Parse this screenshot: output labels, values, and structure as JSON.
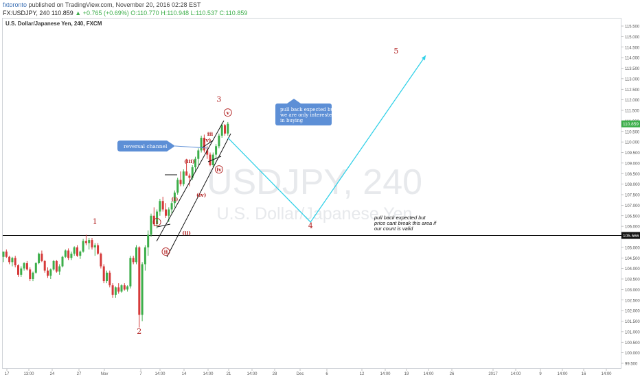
{
  "header": {
    "author": "fxtoronto",
    "published": "published on TradingView.com, November 20, 2016 02:28 EST",
    "symbol": "FX:USDJPY, 240",
    "close": "110.859",
    "arrow": "▲",
    "change": "+0.765 (+0.69%)",
    "open": "O:110.770",
    "high": "H:110.948",
    "low": "L:110.537",
    "closelabel": "C:110.859"
  },
  "chart_title": "U.S. Dollar/Japanese Yen, 240, FXCM",
  "watermark": {
    "symbol": "USDJPY, 240",
    "name": "U.S. Dollar/Japanese Yen"
  },
  "colors": {
    "up": "#3cae4a",
    "down": "#d63a3a",
    "wave": "#b22222",
    "projection": "#33d1e8",
    "callout": "#5d8fd6",
    "level": "#000000"
  },
  "price_axis": {
    "ticks": [
      "115.500",
      "115.000",
      "114.500",
      "114.000",
      "113.500",
      "113.000",
      "112.500",
      "112.000",
      "111.500",
      "111.000",
      "110.500",
      "110.000",
      "109.500",
      "109.000",
      "108.500",
      "108.000",
      "107.500",
      "107.000",
      "106.500",
      "106.000",
      "105.500",
      "105.000",
      "104.500",
      "104.000",
      "103.500",
      "103.000",
      "102.500",
      "102.000",
      "101.500",
      "101.000",
      "100.500",
      "100.000",
      "99.500"
    ],
    "current_price": "110.859",
    "level_price": "105.566"
  },
  "time_axis": {
    "ticks": [
      "17",
      "13:00",
      "24",
      "27",
      "Nov",
      "7",
      "14:00",
      "14",
      "14:00",
      "21",
      "14:00",
      "28",
      "Dec",
      "6",
      "12",
      "14:00",
      "19",
      "14:00",
      "26",
      "2017",
      "14:00",
      "9",
      "14:00",
      "16",
      "14:00"
    ]
  },
  "chart_data": {
    "type": "candlestick",
    "symbol": "USDJPY",
    "interval": "240",
    "ylim": [
      99.5,
      115.9
    ],
    "support_level": 105.566,
    "last_price": 110.859,
    "candles": [
      [
        104.55,
        104.8,
        104.3,
        104.8
      ],
      [
        104.8,
        104.9,
        104.5,
        104.55
      ],
      [
        104.55,
        104.6,
        104.2,
        104.3
      ],
      [
        104.3,
        104.55,
        104.1,
        104.5
      ],
      [
        104.5,
        104.6,
        104.05,
        104.15
      ],
      [
        104.15,
        104.2,
        103.6,
        103.7
      ],
      [
        103.7,
        104.1,
        103.6,
        104.0
      ],
      [
        104.0,
        104.3,
        103.9,
        104.25
      ],
      [
        104.25,
        104.35,
        103.9,
        103.95
      ],
      [
        103.95,
        104.05,
        103.4,
        103.5
      ],
      [
        103.5,
        103.85,
        103.4,
        103.8
      ],
      [
        103.8,
        104.3,
        103.75,
        104.25
      ],
      [
        104.25,
        104.75,
        104.2,
        104.7
      ],
      [
        104.7,
        104.85,
        104.3,
        104.35
      ],
      [
        104.35,
        104.4,
        103.8,
        103.9
      ],
      [
        103.9,
        104.05,
        103.55,
        103.65
      ],
      [
        103.65,
        104.0,
        103.5,
        103.95
      ],
      [
        103.95,
        104.4,
        103.9,
        104.35
      ],
      [
        104.35,
        104.4,
        103.8,
        103.85
      ],
      [
        103.85,
        104.2,
        103.7,
        104.1
      ],
      [
        104.1,
        104.6,
        104.05,
        104.55
      ],
      [
        104.55,
        104.9,
        104.5,
        104.85
      ],
      [
        104.85,
        104.95,
        104.4,
        104.5
      ],
      [
        104.5,
        104.8,
        104.4,
        104.7
      ],
      [
        104.7,
        105.05,
        104.6,
        105.0
      ],
      [
        105.0,
        105.1,
        104.55,
        104.6
      ],
      [
        104.6,
        104.85,
        104.45,
        104.8
      ],
      [
        104.8,
        105.4,
        104.75,
        105.3
      ],
      [
        105.3,
        105.6,
        105.1,
        105.2
      ],
      [
        105.2,
        105.45,
        104.9,
        105.35
      ],
      [
        105.35,
        105.45,
        104.9,
        105.0
      ],
      [
        105.0,
        105.2,
        104.6,
        105.1
      ],
      [
        105.1,
        105.2,
        104.65,
        104.7
      ],
      [
        104.7,
        104.75,
        104.0,
        104.1
      ],
      [
        104.1,
        104.2,
        103.3,
        103.4
      ],
      [
        103.4,
        103.9,
        103.3,
        103.8
      ],
      [
        103.8,
        103.9,
        103.1,
        103.2
      ],
      [
        103.2,
        103.3,
        102.6,
        102.75
      ],
      [
        102.75,
        103.15,
        102.6,
        103.1
      ],
      [
        103.1,
        103.3,
        102.8,
        102.9
      ],
      [
        102.9,
        103.25,
        102.85,
        103.2
      ],
      [
        103.2,
        103.3,
        102.95,
        103.0
      ],
      [
        103.0,
        103.2,
        102.9,
        103.15
      ],
      [
        103.15,
        104.6,
        103.05,
        104.5
      ],
      [
        104.5,
        104.6,
        104.2,
        104.3
      ],
      [
        104.3,
        105.1,
        104.2,
        105.0
      ],
      [
        105.0,
        105.05,
        101.2,
        101.8
      ],
      [
        101.8,
        104.3,
        101.5,
        104.2
      ],
      [
        104.2,
        105.1,
        103.9,
        105.0
      ],
      [
        105.0,
        105.8,
        104.6,
        105.6
      ],
      [
        105.6,
        106.6,
        105.5,
        106.5
      ],
      [
        106.5,
        106.9,
        106.0,
        106.1
      ],
      [
        106.1,
        106.8,
        105.9,
        106.7
      ],
      [
        106.7,
        107.3,
        106.5,
        107.2
      ],
      [
        107.2,
        107.4,
        106.7,
        106.8
      ],
      [
        106.8,
        107.1,
        106.4,
        106.5
      ],
      [
        106.5,
        106.9,
        106.2,
        106.8
      ],
      [
        106.8,
        107.2,
        106.6,
        107.1
      ],
      [
        107.1,
        107.7,
        106.9,
        107.6
      ],
      [
        107.6,
        108.3,
        107.5,
        108.2
      ],
      [
        108.2,
        108.6,
        107.9,
        108.0
      ],
      [
        108.0,
        108.7,
        107.9,
        108.6
      ],
      [
        108.6,
        109.2,
        108.4,
        108.4
      ],
      [
        108.4,
        108.5,
        107.9,
        108.3
      ],
      [
        108.3,
        108.9,
        108.2,
        108.8
      ],
      [
        108.8,
        109.3,
        108.6,
        109.2
      ],
      [
        109.2,
        109.7,
        108.9,
        109.6
      ],
      [
        109.6,
        110.3,
        109.5,
        110.2
      ],
      [
        110.2,
        110.35,
        109.5,
        109.6
      ],
      [
        109.6,
        109.8,
        109.2,
        109.4
      ],
      [
        109.4,
        109.5,
        108.85,
        108.9
      ],
      [
        108.9,
        109.5,
        108.8,
        109.4
      ],
      [
        109.4,
        109.9,
        109.2,
        109.8
      ],
      [
        109.8,
        110.4,
        109.7,
        110.3
      ],
      [
        110.3,
        110.9,
        110.2,
        110.8
      ],
      [
        110.8,
        110.85,
        110.3,
        110.4
      ],
      [
        110.4,
        110.95,
        110.3,
        110.86
      ]
    ],
    "wave_labels": [
      {
        "label": "1",
        "x_index": 31,
        "price": 106.1
      },
      {
        "label": "2",
        "x_index": 46,
        "price": 100.9
      },
      {
        "label": "3",
        "x_index": 73,
        "price": 111.9
      },
      {
        "label": "4",
        "x_index": 104,
        "price": 105.9
      },
      {
        "label": "5",
        "x_index": 133,
        "price": 114.2
      },
      {
        "label": "i",
        "x_index": 52,
        "price": 106.1
      },
      {
        "label": "ii",
        "x_index": 55,
        "price": 104.7
      },
      {
        "label": "(i)",
        "x_index": 58,
        "price": 107.2
      },
      {
        "label": "(ii)",
        "x_index": 62,
        "price": 105.6
      },
      {
        "label": "(iii)",
        "x_index": 63,
        "price": 109.0
      },
      {
        "label": "(iv)",
        "x_index": 67,
        "price": 107.4
      },
      {
        "label": "iii",
        "x_index": 70,
        "price": 110.3
      },
      {
        "label": "(v)",
        "x_index": 69,
        "price": 110.0
      },
      {
        "label": "iv",
        "x_index": 73,
        "price": 108.6
      },
      {
        "label": "v",
        "x_index": 76,
        "price": 111.3
      }
    ],
    "projection": [
      {
        "x_index": 76,
        "price": 110.2
      },
      {
        "x_index": 104,
        "price": 106.2
      },
      {
        "x_index": 143,
        "price": 114.1
      }
    ],
    "annotations": [
      {
        "text": "reversal channel"
      },
      {
        "text": "pull back expected but we are only interested in buying"
      },
      {
        "text": "pull back expected but price cant break this area if our count is valid"
      }
    ]
  },
  "callouts": {
    "reversal": "reversal channel",
    "buying": [
      "pull back expected but",
      "we are only interested",
      "in buying"
    ],
    "support": [
      "pull back expected but",
      "price cant break this area if",
      "our count is valid"
    ]
  }
}
